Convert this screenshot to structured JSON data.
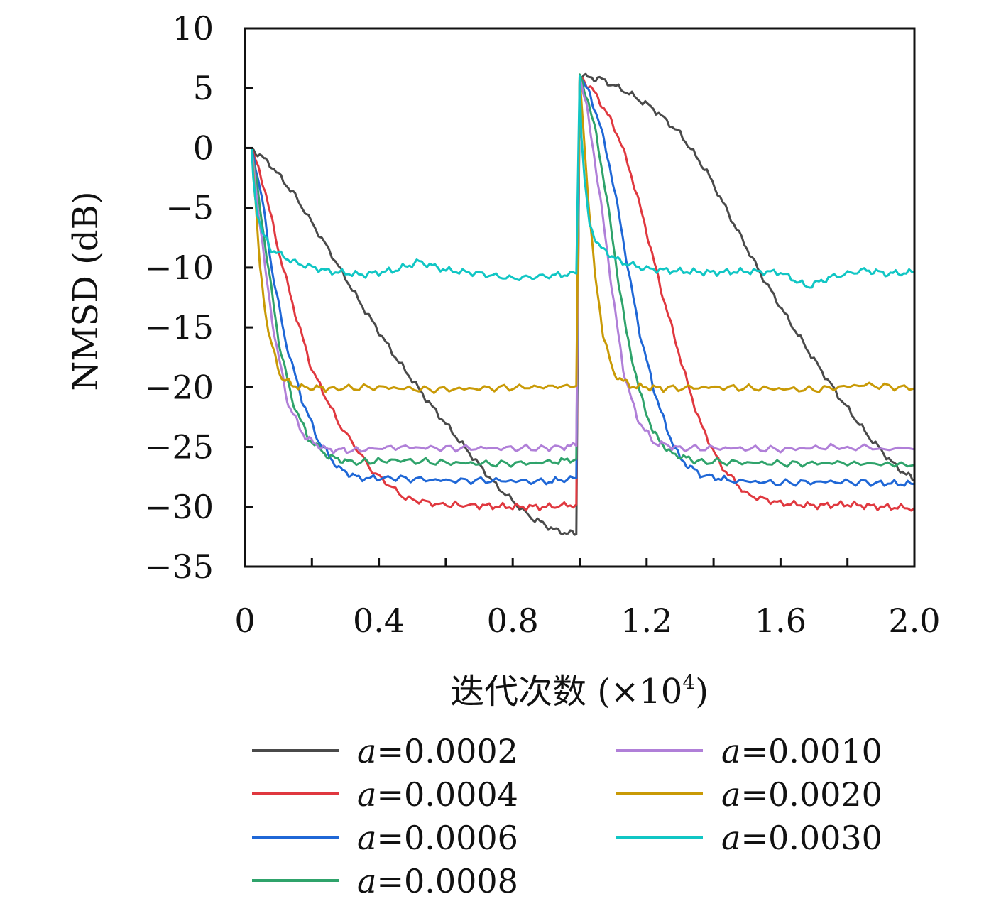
{
  "chart_data": {
    "type": "line",
    "xlabel_main": "迭代次数 (×10",
    "xlabel_sup": "4",
    "xlabel_close": ")",
    "ylabel": "NMSD (dB)",
    "xlim": [
      0,
      2.0
    ],
    "ylim": [
      -35,
      10
    ],
    "xticks": [
      0,
      0.4,
      0.8,
      1.2,
      1.6,
      2.0
    ],
    "xtick_labels": [
      "0",
      "0.4",
      "0.8",
      "1.2",
      "1.6",
      "2.0"
    ],
    "yticks": [
      10,
      5,
      0,
      -5,
      -10,
      -15,
      -20,
      -25,
      -30,
      -35
    ],
    "ytick_labels": [
      "10",
      "5",
      "0",
      "−5",
      "−10",
      "−15",
      "−20",
      "−25",
      "−30",
      "−35"
    ],
    "grid": false,
    "legend_position": "bottom",
    "series": [
      {
        "name": "a=0.0002",
        "var": "a",
        "value": "=0.0002",
        "color": "#4a4a4a",
        "points": [
          [
            0.02,
            0
          ],
          [
            0.08,
            -1.5
          ],
          [
            0.15,
            -4
          ],
          [
            0.25,
            -8.5
          ],
          [
            0.35,
            -13.2
          ],
          [
            0.45,
            -17.5
          ],
          [
            0.55,
            -21.3
          ],
          [
            0.65,
            -24.8
          ],
          [
            0.75,
            -28.2
          ],
          [
            0.85,
            -30.8
          ],
          [
            0.93,
            -32
          ],
          [
            0.99,
            -32.3
          ],
          [
            1.0,
            6
          ],
          [
            1.06,
            5.8
          ],
          [
            1.14,
            4.7
          ],
          [
            1.22,
            3.3
          ],
          [
            1.3,
            1.2
          ],
          [
            1.38,
            -2.0
          ],
          [
            1.46,
            -6.3
          ],
          [
            1.54,
            -10.5
          ],
          [
            1.62,
            -14.2
          ],
          [
            1.7,
            -17.7
          ],
          [
            1.78,
            -21
          ],
          [
            1.86,
            -24
          ],
          [
            1.94,
            -26.5
          ],
          [
            2.0,
            -27.8
          ]
        ]
      },
      {
        "name": "a=0.0004",
        "var": "a",
        "value": "=0.0004",
        "color": "#e0383f",
        "points": [
          [
            0.02,
            0
          ],
          [
            0.06,
            -3.5
          ],
          [
            0.1,
            -8.5
          ],
          [
            0.15,
            -13.8
          ],
          [
            0.2,
            -18.5
          ],
          [
            0.28,
            -23
          ],
          [
            0.38,
            -27
          ],
          [
            0.48,
            -29.3
          ],
          [
            0.58,
            -29.8
          ],
          [
            0.7,
            -29.9
          ],
          [
            0.8,
            -30
          ],
          [
            0.9,
            -30
          ],
          [
            0.99,
            -29.8
          ],
          [
            1.0,
            6
          ],
          [
            1.04,
            4.8
          ],
          [
            1.08,
            3
          ],
          [
            1.12,
            0.7
          ],
          [
            1.16,
            -2.8
          ],
          [
            1.2,
            -7
          ],
          [
            1.24,
            -11.5
          ],
          [
            1.28,
            -15.5
          ],
          [
            1.32,
            -19.5
          ],
          [
            1.36,
            -23
          ],
          [
            1.42,
            -26.5
          ],
          [
            1.5,
            -29
          ],
          [
            1.6,
            -29.7
          ],
          [
            1.7,
            -29.9
          ],
          [
            1.8,
            -29.8
          ],
          [
            1.9,
            -30
          ],
          [
            2.0,
            -30.1
          ]
        ]
      },
      {
        "name": "a=0.0006",
        "var": "a",
        "value": "=0.0006",
        "color": "#1f67d6",
        "points": [
          [
            0.02,
            0
          ],
          [
            0.05,
            -4
          ],
          [
            0.08,
            -10
          ],
          [
            0.12,
            -16
          ],
          [
            0.17,
            -21
          ],
          [
            0.22,
            -24.5
          ],
          [
            0.28,
            -26.8
          ],
          [
            0.34,
            -27.6
          ],
          [
            0.45,
            -27.6
          ],
          [
            0.6,
            -27.8
          ],
          [
            0.75,
            -27.8
          ],
          [
            0.9,
            -27.9
          ],
          [
            0.99,
            -27.6
          ],
          [
            1.0,
            6
          ],
          [
            1.03,
            4.5
          ],
          [
            1.06,
            2
          ],
          [
            1.09,
            -1.5
          ],
          [
            1.12,
            -6
          ],
          [
            1.15,
            -11
          ],
          [
            1.18,
            -15.5
          ],
          [
            1.22,
            -20
          ],
          [
            1.26,
            -23.5
          ],
          [
            1.3,
            -26
          ],
          [
            1.36,
            -27.3
          ],
          [
            1.45,
            -27.8
          ],
          [
            1.6,
            -28
          ],
          [
            1.75,
            -27.9
          ],
          [
            1.9,
            -28
          ],
          [
            2.0,
            -28.1
          ]
        ]
      },
      {
        "name": "a=0.0008",
        "var": "a",
        "value": "=0.0008",
        "color": "#2fa36b",
        "points": [
          [
            0.02,
            0
          ],
          [
            0.04,
            -4
          ],
          [
            0.07,
            -10
          ],
          [
            0.1,
            -16
          ],
          [
            0.14,
            -21
          ],
          [
            0.19,
            -24.3
          ],
          [
            0.25,
            -25.8
          ],
          [
            0.32,
            -26.3
          ],
          [
            0.45,
            -26.1
          ],
          [
            0.6,
            -26.3
          ],
          [
            0.75,
            -26.4
          ],
          [
            0.9,
            -26.3
          ],
          [
            0.99,
            -26
          ],
          [
            1.0,
            6
          ],
          [
            1.025,
            4
          ],
          [
            1.05,
            1
          ],
          [
            1.08,
            -4
          ],
          [
            1.11,
            -10
          ],
          [
            1.14,
            -15.5
          ],
          [
            1.18,
            -20.5
          ],
          [
            1.22,
            -23.8
          ],
          [
            1.27,
            -25.5
          ],
          [
            1.35,
            -26.2
          ],
          [
            1.5,
            -26.3
          ],
          [
            1.65,
            -26.4
          ],
          [
            1.8,
            -26.3
          ],
          [
            2.0,
            -26.5
          ]
        ]
      },
      {
        "name": "a=0.0010",
        "var": "a",
        "value": "=0.0010",
        "color": "#b07fd8",
        "points": [
          [
            0.02,
            0
          ],
          [
            0.035,
            -4
          ],
          [
            0.06,
            -10
          ],
          [
            0.09,
            -16
          ],
          [
            0.13,
            -21.5
          ],
          [
            0.18,
            -24.2
          ],
          [
            0.24,
            -25.2
          ],
          [
            0.32,
            -25.3
          ],
          [
            0.45,
            -25
          ],
          [
            0.6,
            -25.1
          ],
          [
            0.75,
            -25.1
          ],
          [
            0.9,
            -25.1
          ],
          [
            0.99,
            -24.9
          ],
          [
            1.0,
            6
          ],
          [
            1.02,
            3.5
          ],
          [
            1.04,
            0
          ],
          [
            1.07,
            -6
          ],
          [
            1.1,
            -12.5
          ],
          [
            1.13,
            -18.5
          ],
          [
            1.17,
            -22.5
          ],
          [
            1.22,
            -24.6
          ],
          [
            1.3,
            -25.1
          ],
          [
            1.45,
            -25.1
          ],
          [
            1.6,
            -25.2
          ],
          [
            1.75,
            -25
          ],
          [
            2.0,
            -25.2
          ]
        ]
      },
      {
        "name": "a=0.0020",
        "var": "a",
        "value": "=0.0020",
        "color": "#c99a06",
        "points": [
          [
            0.02,
            0
          ],
          [
            0.03,
            -4
          ],
          [
            0.045,
            -10
          ],
          [
            0.07,
            -15.5
          ],
          [
            0.11,
            -19.3
          ],
          [
            0.16,
            -20
          ],
          [
            0.25,
            -20.1
          ],
          [
            0.4,
            -20
          ],
          [
            0.55,
            -20.2
          ],
          [
            0.7,
            -20.1
          ],
          [
            0.85,
            -20
          ],
          [
            0.99,
            -19.9
          ],
          [
            1.0,
            6
          ],
          [
            1.01,
            2
          ],
          [
            1.025,
            -4
          ],
          [
            1.045,
            -10.5
          ],
          [
            1.07,
            -15.5
          ],
          [
            1.1,
            -18.8
          ],
          [
            1.15,
            -19.9
          ],
          [
            1.25,
            -20.1
          ],
          [
            1.4,
            -20
          ],
          [
            1.55,
            -20.1
          ],
          [
            1.7,
            -20.2
          ],
          [
            1.85,
            -19.8
          ],
          [
            2.0,
            -20.1
          ]
        ]
      },
      {
        "name": "a=0.0030",
        "var": "a",
        "value": "=0.0030",
        "color": "#10c6c4",
        "points": [
          [
            0.02,
            0
          ],
          [
            0.025,
            -2.5
          ],
          [
            0.035,
            -5
          ],
          [
            0.05,
            -7
          ],
          [
            0.08,
            -8.5
          ],
          [
            0.15,
            -9.6
          ],
          [
            0.25,
            -10.3
          ],
          [
            0.35,
            -10.6
          ],
          [
            0.45,
            -10.2
          ],
          [
            0.52,
            -9.5
          ],
          [
            0.6,
            -10.2
          ],
          [
            0.7,
            -10.5
          ],
          [
            0.8,
            -10.9
          ],
          [
            0.9,
            -10.7
          ],
          [
            0.99,
            -10.5
          ],
          [
            1.0,
            6
          ],
          [
            1.005,
            1
          ],
          [
            1.015,
            -3
          ],
          [
            1.03,
            -6.5
          ],
          [
            1.06,
            -8.3
          ],
          [
            1.12,
            -9.5
          ],
          [
            1.2,
            -10.1
          ],
          [
            1.3,
            -10.3
          ],
          [
            1.4,
            -10.4
          ],
          [
            1.5,
            -10.3
          ],
          [
            1.6,
            -10.4
          ],
          [
            1.68,
            -11.6
          ],
          [
            1.75,
            -10.8
          ],
          [
            1.85,
            -10.2
          ],
          [
            1.92,
            -10.5
          ],
          [
            2.0,
            -10.4
          ]
        ]
      }
    ]
  }
}
